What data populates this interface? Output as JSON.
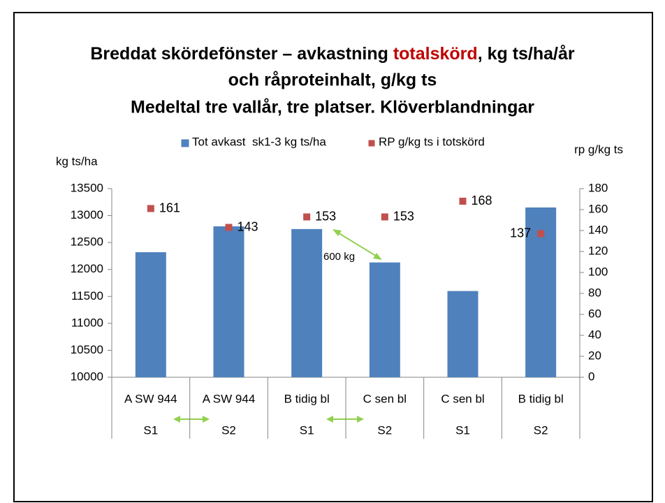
{
  "chart_data": {
    "type": "bar",
    "title": {
      "lines": [
        [
          "Breddat skördefönster – avkastning ",
          "totalskörd",
          ", kg ts/ha/år"
        ],
        [
          "och råproteinhalt, g/kg ts"
        ],
        [
          "Medeltal tre vallår, tre platser. Klöverblandningar"
        ]
      ]
    },
    "categories": [
      "A SW 944",
      "A SW 944",
      "B tidig bl",
      "C sen bl",
      "C sen bl",
      "B tidig bl"
    ],
    "groups": [
      "S1",
      "S2",
      "S1",
      "S2",
      "S1",
      "S2"
    ],
    "series": [
      {
        "name": "Tot avkast  sk1-3 kg ts/ha",
        "color": "#4f81bd",
        "type": "bar",
        "values": [
          12320,
          12800,
          12750,
          12130,
          11600,
          13150
        ]
      },
      {
        "name": "RP g/kg ts i totskörd",
        "color": "#c0504d",
        "type": "scatter",
        "axis": "y2",
        "values": [
          161,
          143,
          153,
          153,
          168,
          137
        ]
      }
    ],
    "ylabel": "kg ts/ha",
    "y2label": "rp g/kg ts",
    "ylim": [
      10000,
      13500
    ],
    "yticks": [
      10000,
      10500,
      11000,
      11500,
      12000,
      12500,
      13000,
      13500
    ],
    "y2lim": [
      0,
      180
    ],
    "y2ticks": [
      0,
      20,
      40,
      60,
      80,
      100,
      120,
      140,
      160,
      180
    ],
    "annotations": [
      "600 kg"
    ],
    "legend": "top"
  }
}
